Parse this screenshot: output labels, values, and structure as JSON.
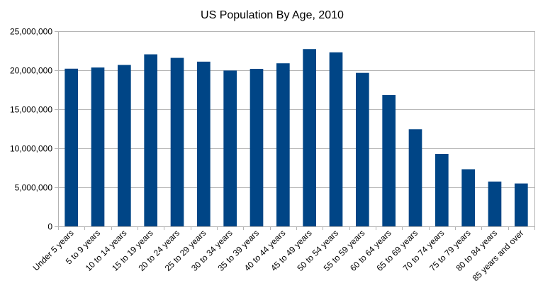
{
  "chart_data": {
    "type": "bar",
    "title": "US Population By Age, 2010",
    "xlabel": "",
    "ylabel": "",
    "categories": [
      "Under 5 years",
      "5 to 9 years",
      "10 to 14 years",
      "15 to 19 years",
      "20 to 24 years",
      "25 to 29 years",
      "30 to 34 years",
      "35 to 39 years",
      "40 to 44 years",
      "45 to 49 years",
      "50 to 54 years",
      "55 to 59 years",
      "60 to 64 years",
      "65 to 69 years",
      "70 to 74 years",
      "75 to 79 years",
      "80 to 84 years",
      "85 years and over"
    ],
    "values": [
      20201362,
      20348657,
      20677194,
      22040343,
      21585999,
      21101849,
      19962099,
      20179642,
      20890964,
      22708591,
      22298125,
      19664805,
      16817924,
      12435263,
      9278166,
      7317795,
      5743327,
      5493433
    ],
    "ylim": [
      0,
      25000000
    ],
    "yticks": [
      0,
      5000000,
      10000000,
      15000000,
      20000000,
      25000000
    ],
    "ytick_labels": [
      "0",
      "5,000,000",
      "10,000,000",
      "15,000,000",
      "20,000,000",
      "25,000,000"
    ],
    "grid": true,
    "bar_color": "#004586",
    "legend": "none"
  }
}
